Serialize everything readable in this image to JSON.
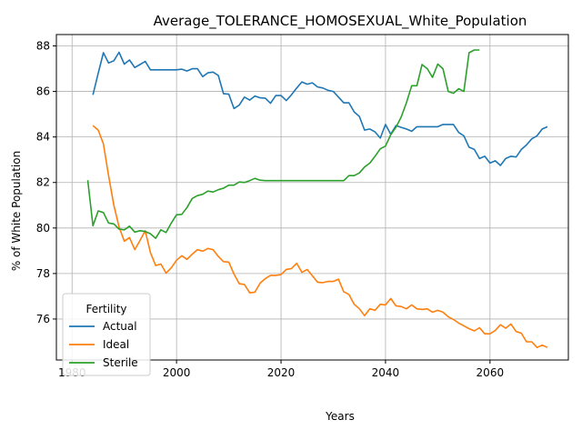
{
  "chart_data": {
    "type": "line",
    "title": "Average_TOLERANCE_HOMOSEXUAL_White_Population",
    "xlabel": "Years",
    "ylabel": "% of White Population",
    "xlim": [
      1977,
      2075
    ],
    "ylim": [
      74.2,
      88.5
    ],
    "x_ticks": [
      1980,
      2000,
      2020,
      2040,
      2060
    ],
    "y_ticks": [
      76,
      78,
      80,
      82,
      84,
      86,
      88
    ],
    "grid": true,
    "legend_title": "Fertility",
    "legend_position": "lower-left",
    "series": [
      {
        "name": "Actual",
        "color": "#1f77b4",
        "points": [
          [
            1984,
            85.85
          ],
          [
            1985,
            86.8
          ],
          [
            1986,
            87.7
          ],
          [
            1987,
            87.25
          ],
          [
            1988,
            87.35
          ],
          [
            1989,
            87.72
          ],
          [
            1990,
            87.2
          ],
          [
            1991,
            87.38
          ],
          [
            1992,
            87.05
          ],
          [
            1993,
            87.18
          ],
          [
            1994,
            87.32
          ],
          [
            1995,
            86.95
          ],
          [
            1996,
            86.95
          ],
          [
            1998,
            86.95
          ],
          [
            2000,
            86.95
          ],
          [
            2001,
            86.98
          ],
          [
            2002,
            86.9
          ],
          [
            2003,
            87.0
          ],
          [
            2004,
            87.0
          ],
          [
            2005,
            86.65
          ],
          [
            2006,
            86.82
          ],
          [
            2007,
            86.85
          ],
          [
            2008,
            86.7
          ],
          [
            2009,
            85.9
          ],
          [
            2010,
            85.88
          ],
          [
            2011,
            85.25
          ],
          [
            2012,
            85.4
          ],
          [
            2013,
            85.75
          ],
          [
            2014,
            85.62
          ],
          [
            2015,
            85.8
          ],
          [
            2016,
            85.72
          ],
          [
            2017,
            85.7
          ],
          [
            2018,
            85.48
          ],
          [
            2019,
            85.82
          ],
          [
            2020,
            85.82
          ],
          [
            2021,
            85.6
          ],
          [
            2022,
            85.85
          ],
          [
            2023,
            86.15
          ],
          [
            2024,
            86.42
          ],
          [
            2025,
            86.32
          ],
          [
            2026,
            86.38
          ],
          [
            2027,
            86.2
          ],
          [
            2028,
            86.15
          ],
          [
            2029,
            86.05
          ],
          [
            2030,
            86.0
          ],
          [
            2031,
            85.75
          ],
          [
            2032,
            85.5
          ],
          [
            2033,
            85.5
          ],
          [
            2034,
            85.1
          ],
          [
            2035,
            84.9
          ],
          [
            2036,
            84.3
          ],
          [
            2037,
            84.35
          ],
          [
            2038,
            84.22
          ],
          [
            2039,
            83.95
          ],
          [
            2040,
            84.55
          ],
          [
            2041,
            84.12
          ],
          [
            2042,
            84.5
          ],
          [
            2043,
            84.42
          ],
          [
            2044,
            84.35
          ],
          [
            2045,
            84.25
          ],
          [
            2046,
            84.45
          ],
          [
            2047,
            84.45
          ],
          [
            2048,
            84.45
          ],
          [
            2049,
            84.45
          ],
          [
            2050,
            84.45
          ],
          [
            2051,
            84.55
          ],
          [
            2052,
            84.55
          ],
          [
            2053,
            84.55
          ],
          [
            2054,
            84.2
          ],
          [
            2055,
            84.05
          ],
          [
            2056,
            83.55
          ],
          [
            2057,
            83.45
          ],
          [
            2058,
            83.05
          ],
          [
            2059,
            83.15
          ],
          [
            2060,
            82.85
          ],
          [
            2061,
            82.95
          ],
          [
            2062,
            82.75
          ],
          [
            2063,
            83.05
          ],
          [
            2064,
            83.15
          ],
          [
            2065,
            83.12
          ],
          [
            2066,
            83.45
          ],
          [
            2067,
            83.65
          ],
          [
            2068,
            83.92
          ],
          [
            2069,
            84.05
          ],
          [
            2070,
            84.35
          ],
          [
            2071,
            84.45
          ]
        ]
      },
      {
        "name": "Ideal",
        "color": "#ff7f0e",
        "points": [
          [
            1984,
            84.5
          ],
          [
            1985,
            84.3
          ],
          [
            1986,
            83.7
          ],
          [
            1987,
            82.3
          ],
          [
            1988,
            81.0
          ],
          [
            1989,
            80.05
          ],
          [
            1990,
            79.42
          ],
          [
            1991,
            79.58
          ],
          [
            1992,
            79.05
          ],
          [
            1993,
            79.45
          ],
          [
            1994,
            79.88
          ],
          [
            1995,
            78.92
          ],
          [
            1996,
            78.35
          ],
          [
            1997,
            78.42
          ],
          [
            1998,
            78.02
          ],
          [
            1999,
            78.25
          ],
          [
            2000,
            78.58
          ],
          [
            2001,
            78.78
          ],
          [
            2002,
            78.62
          ],
          [
            2003,
            78.85
          ],
          [
            2004,
            79.05
          ],
          [
            2005,
            78.98
          ],
          [
            2006,
            79.1
          ],
          [
            2007,
            79.05
          ],
          [
            2008,
            78.75
          ],
          [
            2009,
            78.52
          ],
          [
            2010,
            78.5
          ],
          [
            2011,
            77.98
          ],
          [
            2012,
            77.55
          ],
          [
            2013,
            77.52
          ],
          [
            2014,
            77.15
          ],
          [
            2015,
            77.18
          ],
          [
            2016,
            77.58
          ],
          [
            2017,
            77.78
          ],
          [
            2018,
            77.92
          ],
          [
            2019,
            77.92
          ],
          [
            2020,
            77.95
          ],
          [
            2021,
            78.18
          ],
          [
            2022,
            78.22
          ],
          [
            2023,
            78.45
          ],
          [
            2024,
            78.05
          ],
          [
            2025,
            78.18
          ],
          [
            2026,
            77.9
          ],
          [
            2027,
            77.62
          ],
          [
            2028,
            77.6
          ],
          [
            2029,
            77.65
          ],
          [
            2030,
            77.65
          ],
          [
            2031,
            77.75
          ],
          [
            2032,
            77.2
          ],
          [
            2033,
            77.08
          ],
          [
            2034,
            76.65
          ],
          [
            2035,
            76.45
          ],
          [
            2036,
            76.15
          ],
          [
            2037,
            76.45
          ],
          [
            2038,
            76.38
          ],
          [
            2039,
            76.65
          ],
          [
            2040,
            76.62
          ],
          [
            2041,
            76.9
          ],
          [
            2042,
            76.58
          ],
          [
            2043,
            76.55
          ],
          [
            2044,
            76.45
          ],
          [
            2045,
            76.62
          ],
          [
            2046,
            76.45
          ],
          [
            2047,
            76.42
          ],
          [
            2048,
            76.45
          ],
          [
            2049,
            76.3
          ],
          [
            2050,
            76.38
          ],
          [
            2051,
            76.3
          ],
          [
            2052,
            76.1
          ],
          [
            2053,
            75.98
          ],
          [
            2054,
            75.82
          ],
          [
            2055,
            75.7
          ],
          [
            2056,
            75.58
          ],
          [
            2057,
            75.48
          ],
          [
            2058,
            75.62
          ],
          [
            2059,
            75.35
          ],
          [
            2060,
            75.35
          ],
          [
            2061,
            75.5
          ],
          [
            2062,
            75.75
          ],
          [
            2063,
            75.6
          ],
          [
            2064,
            75.78
          ],
          [
            2065,
            75.45
          ],
          [
            2066,
            75.38
          ],
          [
            2067,
            75.0
          ],
          [
            2068,
            75.0
          ],
          [
            2069,
            74.75
          ],
          [
            2070,
            74.85
          ],
          [
            2071,
            74.75
          ]
        ]
      },
      {
        "name": "Sterile",
        "color": "#2ca02c",
        "points": [
          [
            1983,
            82.1
          ],
          [
            1984,
            80.1
          ],
          [
            1985,
            80.75
          ],
          [
            1986,
            80.68
          ],
          [
            1987,
            80.22
          ],
          [
            1988,
            80.18
          ],
          [
            1989,
            79.95
          ],
          [
            1990,
            79.92
          ],
          [
            1991,
            80.08
          ],
          [
            1992,
            79.82
          ],
          [
            1993,
            79.88
          ],
          [
            1994,
            79.85
          ],
          [
            1995,
            79.75
          ],
          [
            1996,
            79.55
          ],
          [
            1997,
            79.92
          ],
          [
            1998,
            79.8
          ],
          [
            1999,
            80.22
          ],
          [
            2000,
            80.58
          ],
          [
            2001,
            80.6
          ],
          [
            2002,
            80.9
          ],
          [
            2003,
            81.3
          ],
          [
            2004,
            81.42
          ],
          [
            2005,
            81.48
          ],
          [
            2006,
            81.62
          ],
          [
            2007,
            81.58
          ],
          [
            2008,
            81.68
          ],
          [
            2009,
            81.75
          ],
          [
            2010,
            81.88
          ],
          [
            2011,
            81.88
          ],
          [
            2012,
            82.02
          ],
          [
            2013,
            82.0
          ],
          [
            2014,
            82.08
          ],
          [
            2015,
            82.18
          ],
          [
            2016,
            82.1
          ],
          [
            2017,
            82.08
          ],
          [
            2018,
            82.08
          ],
          [
            2020,
            82.08
          ],
          [
            2025,
            82.08
          ],
          [
            2030,
            82.08
          ],
          [
            2032,
            82.08
          ],
          [
            2033,
            82.3
          ],
          [
            2034,
            82.3
          ],
          [
            2035,
            82.42
          ],
          [
            2036,
            82.68
          ],
          [
            2037,
            82.85
          ],
          [
            2038,
            83.15
          ],
          [
            2039,
            83.48
          ],
          [
            2040,
            83.6
          ],
          [
            2041,
            84.1
          ],
          [
            2042,
            84.42
          ],
          [
            2043,
            84.88
          ],
          [
            2044,
            85.5
          ],
          [
            2045,
            86.25
          ],
          [
            2046,
            86.25
          ],
          [
            2047,
            87.18
          ],
          [
            2048,
            87.0
          ],
          [
            2049,
            86.62
          ],
          [
            2050,
            87.2
          ],
          [
            2051,
            87.0
          ],
          [
            2052,
            86.0
          ],
          [
            2053,
            85.92
          ],
          [
            2054,
            86.12
          ],
          [
            2055,
            86.0
          ],
          [
            2056,
            87.7
          ],
          [
            2057,
            87.82
          ],
          [
            2058,
            87.82
          ]
        ]
      }
    ]
  }
}
